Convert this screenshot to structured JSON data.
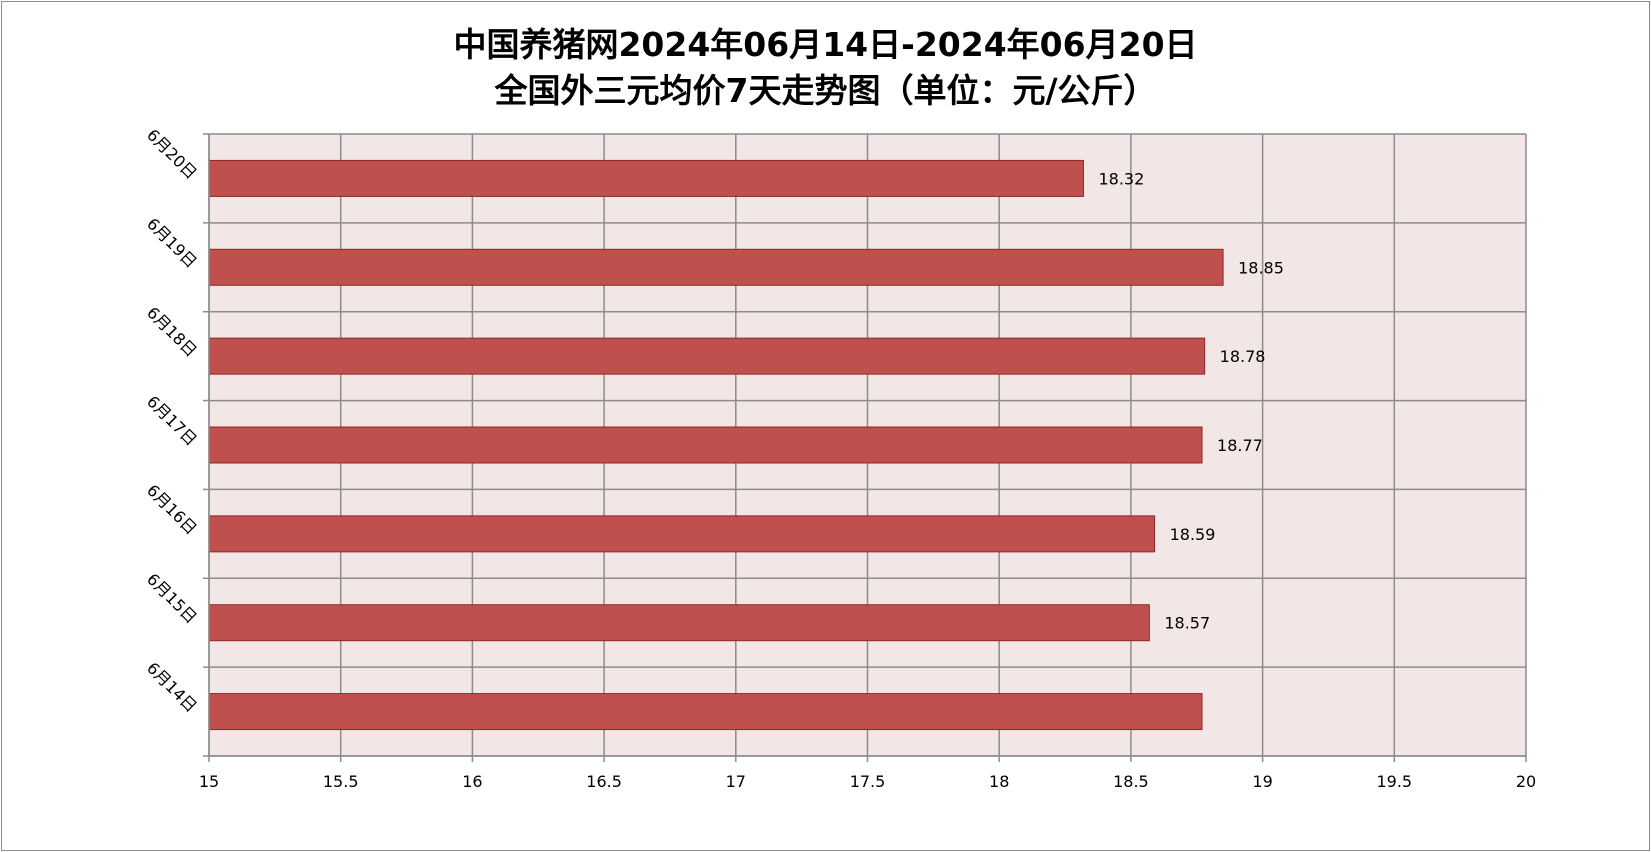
{
  "chart_data": {
    "type": "bar",
    "orientation": "horizontal",
    "title": "中国养猪网2024年06月14日-2024年06月20日",
    "subtitle": "全国外三元均价7天走势图（单位：元/公斤）",
    "categories": [
      "6月20日",
      "6月19日",
      "6月18日",
      "6月17日",
      "6月16日",
      "6月15日",
      "6月14日"
    ],
    "series": [
      {
        "values": [
          18.32,
          18.85,
          18.78,
          18.77,
          18.59,
          18.57,
          18.77
        ]
      }
    ],
    "data_labels": [
      "18.32",
      "18.85",
      "18.78",
      "18.77",
      "18.59",
      "18.57",
      ""
    ],
    "xlim": [
      15,
      20
    ],
    "x_ticks": [
      "15",
      "15.5",
      "16",
      "16.5",
      "17",
      "17.5",
      "18",
      "18.5",
      "19",
      "19.5",
      "20"
    ],
    "grid": true,
    "legend": "none",
    "colors": {
      "bar_fill": "#c0504d",
      "bar_stroke": "#8c2a28",
      "plot_background": "#f2e6e6",
      "grid": "#8c8c8c"
    }
  }
}
